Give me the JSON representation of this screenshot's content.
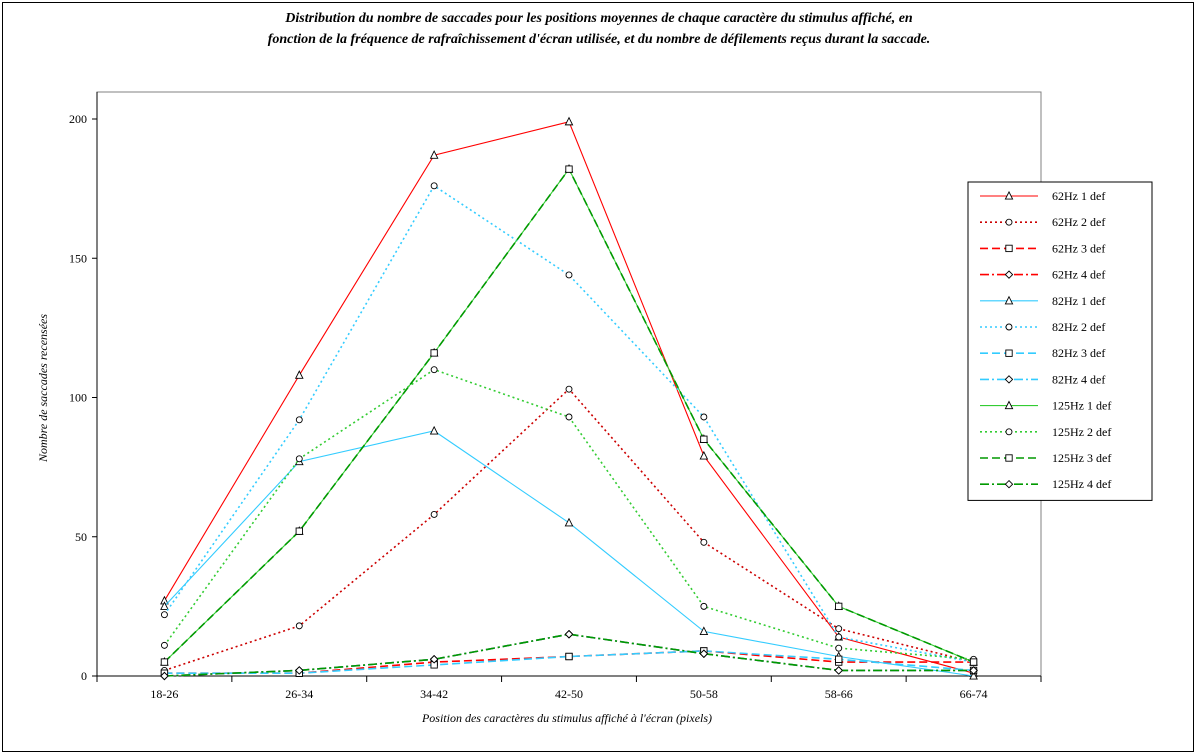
{
  "chart_data": {
    "type": "line",
    "title_lines": [
      "Distribution du nombre de saccades pour les positions moyennes de chaque caractère du stimulus affiché, en",
      "fonction de la fréquence de rafraîchissement d'écran utilisée, et du nombre de défilements reçus durant la saccade."
    ],
    "xlabel": "Position des caractères du stimulus affiché à l'écran (pixels)",
    "ylabel": "Nombre de saccades recensées",
    "categories": [
      "18-26",
      "26-34",
      "34-42",
      "42-50",
      "50-58",
      "58-66",
      "66-74"
    ],
    "ylim": [
      0,
      200
    ],
    "yticks": [
      "0",
      "50",
      "100",
      "150",
      "200"
    ],
    "grid": false,
    "legend_position": "right",
    "series": [
      {
        "name": "62Hz 1 def",
        "color": "#ff0000",
        "dash": "solid",
        "marker": "triangle",
        "values": [
          27,
          108,
          187,
          199,
          79,
          14,
          1
        ]
      },
      {
        "name": "62Hz 2 def",
        "color": "#cc0000",
        "dash": "dot",
        "marker": "circle",
        "values": [
          2,
          18,
          58,
          103,
          48,
          17,
          5
        ]
      },
      {
        "name": "62Hz 3 def",
        "color": "#ff0000",
        "dash": "dash",
        "marker": "square",
        "values": [
          1,
          1,
          5,
          7,
          9,
          5,
          5
        ]
      },
      {
        "name": "62Hz 4 def",
        "color": "#ff0000",
        "dash": "dashdot",
        "marker": "diamond",
        "values": [
          0,
          2,
          6,
          15,
          8,
          2,
          2
        ]
      },
      {
        "name": "82Hz 1 def",
        "color": "#33ccff",
        "dash": "solid",
        "marker": "triangle",
        "values": [
          25,
          77,
          88,
          55,
          16,
          7,
          0
        ]
      },
      {
        "name": "82Hz 2 def",
        "color": "#33ccff",
        "dash": "dot",
        "marker": "circle",
        "values": [
          22,
          92,
          176,
          144,
          93,
          14,
          5
        ]
      },
      {
        "name": "82Hz 3 def",
        "color": "#33ccff",
        "dash": "dash",
        "marker": "square",
        "values": [
          1,
          1,
          4,
          7,
          9,
          6,
          2
        ]
      },
      {
        "name": "82Hz 4 def",
        "color": "#33ccff",
        "dash": "dashdot",
        "marker": "diamond",
        "values": [
          0,
          2,
          6,
          15,
          8,
          2,
          2
        ]
      },
      {
        "name": "125Hz 1 def",
        "color": "#33cc33",
        "dash": "solid",
        "marker": "triangle",
        "values": [
          5,
          52,
          116,
          182,
          85,
          25,
          5
        ]
      },
      {
        "name": "125Hz 2 def",
        "color": "#33cc33",
        "dash": "dot",
        "marker": "circle",
        "values": [
          11,
          78,
          110,
          93,
          25,
          10,
          6
        ]
      },
      {
        "name": "125Hz 3 def",
        "color": "#009900",
        "dash": "dash",
        "marker": "square",
        "values": [
          5,
          52,
          116,
          182,
          85,
          25,
          5
        ]
      },
      {
        "name": "125Hz 4 def",
        "color": "#009900",
        "dash": "dashdot",
        "marker": "diamond",
        "values": [
          0,
          2,
          6,
          15,
          8,
          2,
          2
        ]
      }
    ]
  }
}
